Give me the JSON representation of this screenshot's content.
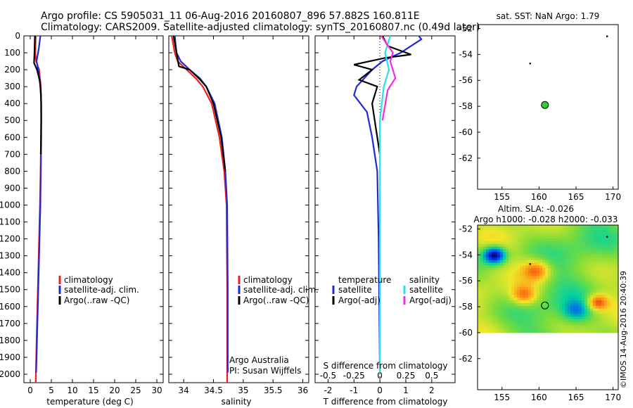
{
  "header": {
    "line1": "Argo profile: CS 5905031_11 06-Aug-2016 20160807_896 57.882S 160.811E",
    "line2": "Climatology: CARS2009. Satellite-adjusted climatology: synTS_20160807.nc (0.49d later)"
  },
  "colors": {
    "climatology": "#ee1c1c",
    "satellite": "#1f2ad6",
    "argo": "#000000",
    "sal_satellite": "#25e1ee",
    "sal_argo": "#ee2be0",
    "sst_marker": "#33cc33"
  },
  "legend_profile": {
    "climatology": "climatology",
    "satellite": "satellite-adj. clim.",
    "argo": "Argo(..raw -QC)"
  },
  "legend_diff": {
    "temperature_title": "temperature",
    "salinity_title": "salinity",
    "satellite": "satellite",
    "argo": "Argo(-adj)"
  },
  "credits": {
    "org": "Argo Australia",
    "pi": "PI: Susan Wijffels",
    "stamp": "©IMOS 14-Aug-2016 20:40:39"
  },
  "sst_panel": {
    "title": "sat. SST: NaN Argo: 1.79"
  },
  "sla_panel": {
    "title1": "Altim. SLA: -0.026",
    "title2": "Argo h1000: -0.028 h2000: -0.033"
  },
  "chart_data": [
    {
      "type": "line",
      "name": "temperature_profile",
      "xlabel": "temperature (deg C)",
      "ylabel": "",
      "xlim": [
        -1.5,
        31.5
      ],
      "ylim": [
        2050,
        0
      ],
      "xticks": [
        0,
        5,
        10,
        15,
        20,
        25,
        30
      ],
      "yticks": [
        0,
        100,
        200,
        300,
        400,
        500,
        600,
        700,
        800,
        900,
        1000,
        1100,
        1200,
        1300,
        1400,
        1500,
        1600,
        1700,
        1800,
        1900,
        2000
      ],
      "series": [
        {
          "name": "climatology",
          "color": "#ee1c1c",
          "x": [
            1.3,
            1.2,
            1.4,
            2.1,
            2.5,
            2.6,
            2.55,
            2.45,
            2.3,
            2.1,
            1.8,
            1.5,
            1.3
          ],
          "y": [
            0,
            100,
            150,
            200,
            300,
            400,
            600,
            800,
            1000,
            1200,
            1500,
            1800,
            2050
          ]
        },
        {
          "name": "satellite-adj. clim.",
          "color": "#1f2ad6",
          "x": [
            2.4,
            2.0,
            1.5,
            1.9,
            2.4,
            2.6,
            2.6,
            2.5,
            2.4,
            2.2,
            1.9,
            1.6,
            1.4
          ],
          "y": [
            0,
            80,
            150,
            200,
            300,
            400,
            600,
            800,
            1000,
            1200,
            1500,
            1800,
            1990
          ]
        },
        {
          "name": "Argo(..raw -QC)",
          "color": "#000000",
          "x": [
            1.1,
            1.0,
            0.9,
            1.6,
            2.3,
            2.55,
            2.6,
            2.5
          ],
          "y": [
            0,
            100,
            160,
            200,
            270,
            350,
            500,
            700
          ]
        }
      ]
    },
    {
      "type": "line",
      "name": "salinity_profile",
      "xlabel": "salinity",
      "ylabel": "",
      "xlim": [
        33.75,
        36.1
      ],
      "ylim": [
        2050,
        0
      ],
      "xticks": [
        34,
        34.5,
        35,
        35.5,
        36
      ],
      "series": [
        {
          "name": "climatology",
          "color": "#ee1c1c",
          "x": [
            33.8,
            33.85,
            33.9,
            34.05,
            34.2,
            34.32,
            34.47,
            34.6,
            34.68,
            34.72,
            34.73,
            34.73
          ],
          "y": [
            0,
            100,
            150,
            200,
            250,
            300,
            400,
            600,
            800,
            1000,
            1500,
            2050
          ]
        },
        {
          "name": "satellite-adj. clim.",
          "color": "#1f2ad6",
          "x": [
            33.85,
            33.88,
            33.95,
            34.1,
            34.27,
            34.38,
            34.52,
            34.64,
            34.7,
            34.73,
            34.74,
            34.74
          ],
          "y": [
            0,
            100,
            150,
            200,
            250,
            300,
            400,
            600,
            800,
            1000,
            1500,
            1990
          ]
        },
        {
          "name": "Argo(..raw -QC)",
          "color": "#000000",
          "x": [
            33.83,
            33.88,
            33.92,
            34.1,
            34.28,
            34.38,
            34.5,
            34.63,
            34.7
          ],
          "y": [
            0,
            100,
            180,
            200,
            260,
            300,
            400,
            600,
            800
          ]
        }
      ]
    },
    {
      "type": "line",
      "name": "difference_profile",
      "xlabel": "T difference from climatology",
      "xlabel2": "S difference from climatology",
      "xlim": [
        -2.5,
        2.9
      ],
      "ylim": [
        2050,
        0
      ],
      "xticks": [
        -2,
        -1,
        0,
        1,
        2
      ],
      "sticks": [
        "-0.5",
        "-0.25",
        "0",
        "0.25",
        "0.5"
      ],
      "series": [
        {
          "name": "temperature satellite",
          "color": "#1f2ad6",
          "x": [
            1.5,
            1.6,
            0.8,
            0.1,
            -0.3,
            -0.9,
            -1.0,
            -0.5,
            -0.3,
            -0.1,
            -0.05,
            0.0
          ],
          "y": [
            0,
            20,
            100,
            150,
            200,
            300,
            350,
            450,
            600,
            800,
            1200,
            1990
          ]
        },
        {
          "name": "temperature Argo(-adj)",
          "color": "#000000",
          "x": [
            0.1,
            0.3,
            1.2,
            0.2,
            -1.0,
            -0.3,
            -0.8,
            -0.1,
            -0.3,
            0.0
          ],
          "y": [
            0,
            60,
            110,
            130,
            170,
            200,
            260,
            300,
            400,
            700
          ]
        },
        {
          "name": "salinity satellite",
          "color": "#25e1ee",
          "x": [
            0.4,
            0.2,
            0.35,
            0.15,
            0.0,
            0.0
          ],
          "y": [
            0,
            100,
            200,
            300,
            500,
            1990
          ]
        },
        {
          "name": "salinity Argo(-adj)",
          "color": "#ee2be0",
          "x": [
            0.05,
            0.5,
            0.4,
            0.6,
            0.3,
            0.1
          ],
          "y": [
            0,
            100,
            150,
            250,
            320,
            500
          ]
        }
      ]
    },
    {
      "type": "scatter",
      "name": "sst_map",
      "xlim": [
        151.7,
        170.7
      ],
      "ylim": [
        -64.4,
        -51.7
      ],
      "xticks": [
        155,
        160,
        165,
        170
      ],
      "yticks": [
        -52,
        -54,
        -56,
        -58,
        -60,
        -62
      ],
      "points": [
        {
          "lon": 169.2,
          "lat": -52.6,
          "kind": "dot"
        },
        {
          "lon": 158.8,
          "lat": -54.7,
          "kind": "dot"
        },
        {
          "lon": 160.8,
          "lat": -57.9,
          "kind": "float"
        }
      ]
    },
    {
      "type": "heatmap",
      "name": "sla_map",
      "xlim": [
        151.7,
        170.7
      ],
      "ylim": [
        -64.4,
        -51.7
      ],
      "xticks": [
        155,
        160,
        165,
        170
      ],
      "yticks": [
        -52,
        -54,
        -56,
        -58,
        -60,
        -62
      ],
      "data_lat_range": [
        -60.0,
        -51.7
      ],
      "points": [
        {
          "lon": 169.2,
          "lat": -52.6,
          "kind": "dot"
        },
        {
          "lon": 158.8,
          "lat": -54.7,
          "kind": "dot"
        },
        {
          "lon": 160.8,
          "lat": -57.9,
          "kind": "float"
        }
      ]
    }
  ]
}
